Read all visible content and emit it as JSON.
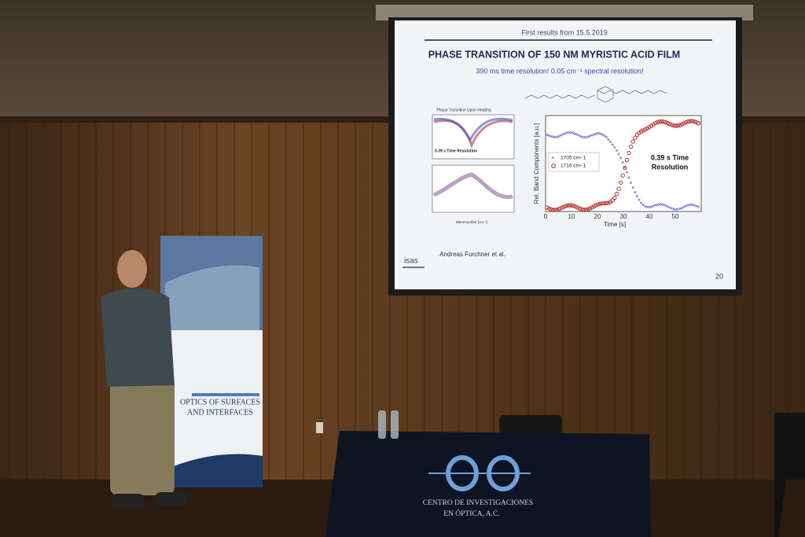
{
  "slide": {
    "header": "First results from 15.5.2019",
    "title": "PHASE TRANSITION OF 150 NM MYRISTIC ACID FILM",
    "subtitle": "390 ms time resolution! 0.05 cm⁻¹ spectral resolution!",
    "left_plot": {
      "title": "Phase Transition Upon Heating",
      "note": "0.39 s Time Resolution",
      "xlabel": "Wavenumber [cm⁻¹]"
    },
    "right_plot": {
      "ylabel": "Rel. Band Components [a.u.]",
      "xlabel": "Time [s]",
      "xticks": [
        "0",
        "10",
        "20",
        "30",
        "40",
        "50"
      ],
      "legend": [
        "1705 cm−1",
        "1716 cm−1"
      ],
      "annotation": [
        "0.39 s Time",
        "Resolution"
      ]
    },
    "author": "Andreas Furchner et al.",
    "logo": "isas",
    "page": "20"
  },
  "banner": {
    "title": [
      "OPTICS OF SURFACES",
      "AND INTERFACES"
    ]
  },
  "table": {
    "logo": "CIO",
    "text": [
      "CENTRO DE INVESTIGACIONES",
      "EN ÓPTICA, A.C."
    ]
  }
}
